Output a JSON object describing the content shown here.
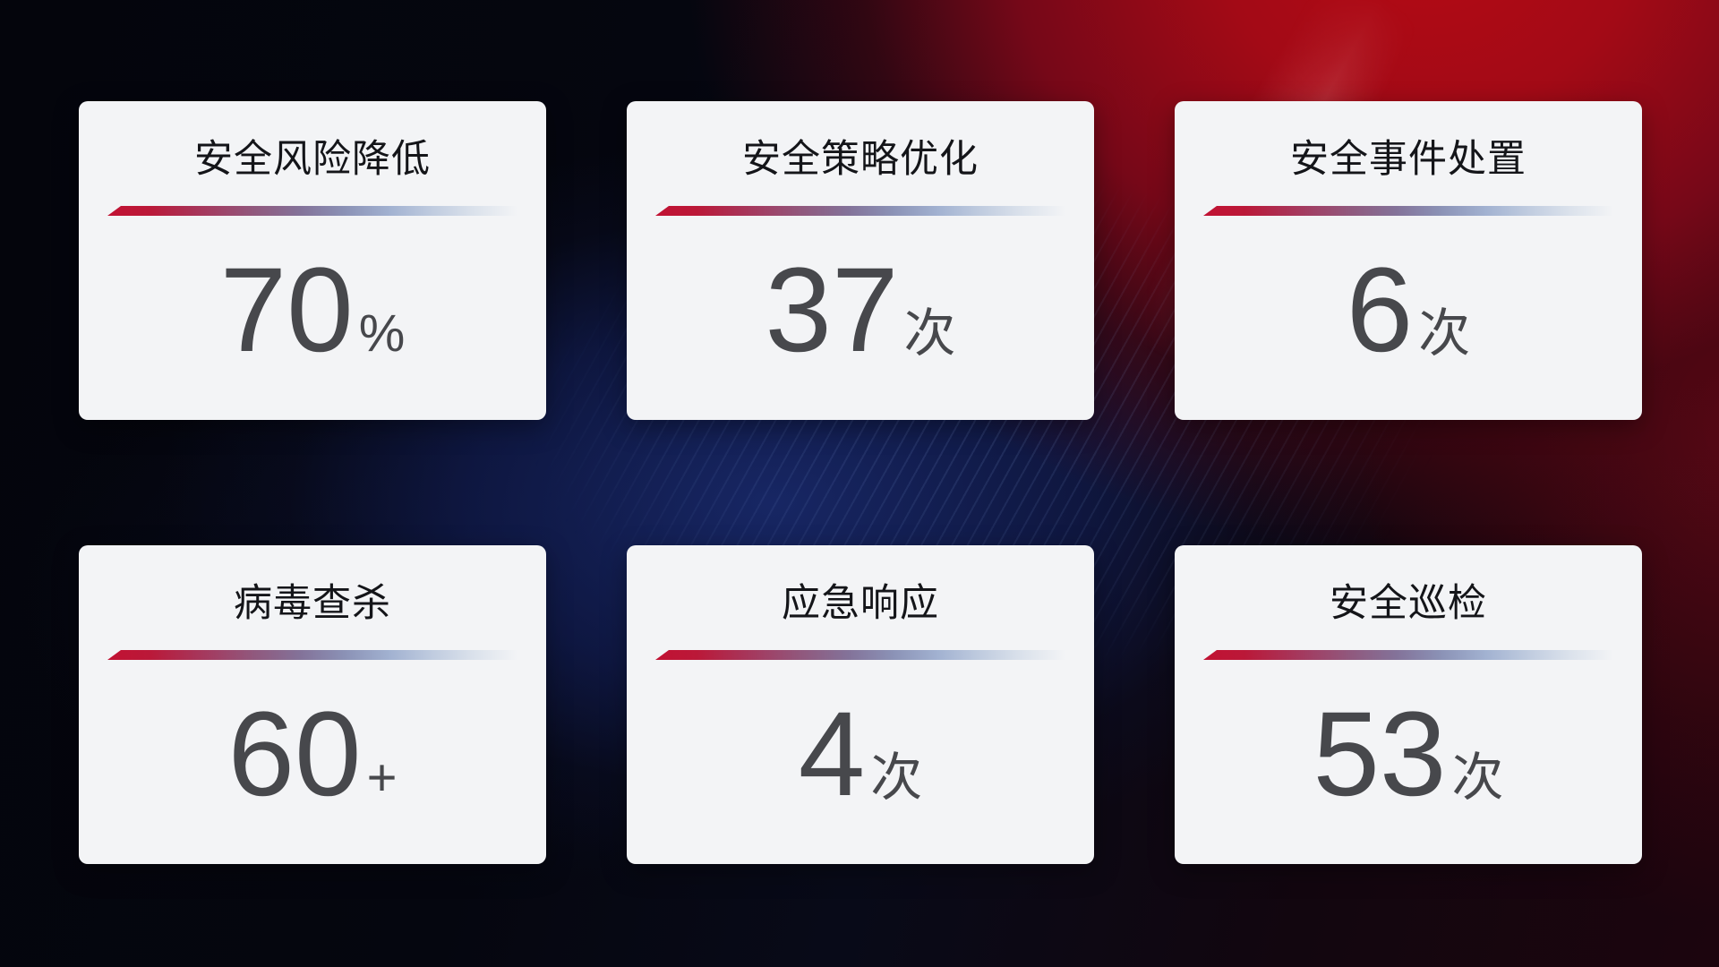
{
  "cards": [
    {
      "title": "安全风险降低",
      "value": "70",
      "unit": "%"
    },
    {
      "title": "安全策略优化",
      "value": "37",
      "unit": "次"
    },
    {
      "title": "安全事件处置",
      "value": "6",
      "unit": "次"
    },
    {
      "title": "病毒查杀",
      "value": "60",
      "unit": "+"
    },
    {
      "title": "应急响应",
      "value": "4",
      "unit": "次"
    },
    {
      "title": "安全巡检",
      "value": "53",
      "unit": "次"
    }
  ],
  "colors": {
    "card_background": "#f3f4f6",
    "title_text": "#141519",
    "value_text": "#47484c",
    "divider_start_red": "#c11233",
    "divider_mid_blue": "#a2b2d1",
    "background_dark_navy": "#05060d",
    "background_center_blue": "#182868",
    "background_accent_red": "#b40a14"
  }
}
